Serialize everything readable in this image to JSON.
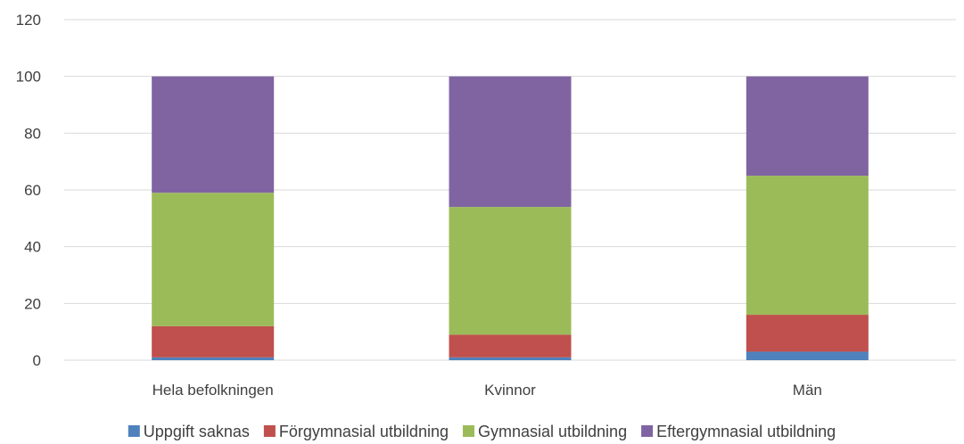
{
  "chart_data": {
    "type": "bar",
    "stacked": true,
    "categories": [
      "Hela befolkningen",
      "Kvinnor",
      "Män"
    ],
    "series": [
      {
        "name": "Uppgift saknas",
        "color": "#4f81bd",
        "values": [
          1,
          1,
          3
        ]
      },
      {
        "name": "Förgymnasial utbildning",
        "color": "#c0504d",
        "values": [
          11,
          8,
          13
        ]
      },
      {
        "name": "Gymnasial utbildning",
        "color": "#9bbb59",
        "values": [
          47,
          45,
          49
        ]
      },
      {
        "name": "Eftergymnasial utbildning",
        "color": "#8064a2",
        "values": [
          41,
          46,
          35
        ]
      }
    ],
    "ylim": [
      0,
      120
    ],
    "yticks": [
      0,
      20,
      40,
      60,
      80,
      100,
      120
    ],
    "grid": true,
    "legend_position": "bottom",
    "gridline_color": "#d9d9d9"
  }
}
